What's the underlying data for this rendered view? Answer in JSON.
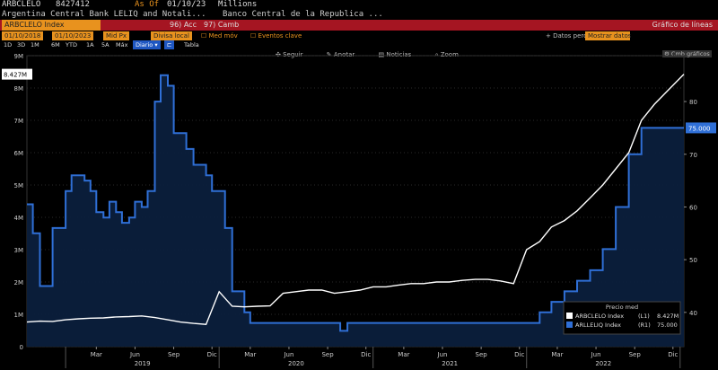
{
  "header": {
    "ticker": "ARBCLELO",
    "last_value": "8427412",
    "as_of_label": "As Of",
    "as_of_date": "01/10/23",
    "units": "Millions",
    "description_left": "Argentina Central Bank LELIQ and Notali...",
    "description_right": "Banco Central de la Republica ..."
  },
  "command_bar": {
    "security": "ARBCLELO Index",
    "action1": "96) Acc",
    "action2": "97) Camb",
    "view_title": "Gráfico de líneas"
  },
  "settings_bar": {
    "start_date": "01/10/2018",
    "end_date": "01/10/2023",
    "field": "Mid Px",
    "currency": "Divisa local",
    "option1": "Med móv",
    "option2": "Eventos clave",
    "data_label": "Datos perdi",
    "data_value": "Mostrar datos"
  },
  "range_bar": {
    "periods": [
      "1D",
      "3D",
      "1M",
      "6M",
      "YTD",
      "1A",
      "5A",
      "Máx"
    ],
    "frequency": "Diario",
    "table_label": "Tabla"
  },
  "chart_toolbar": {
    "items": [
      "Seguir",
      "Anotar",
      "Noticias",
      "Zoom"
    ],
    "right_button": "Cmb gráficos"
  },
  "colors": {
    "background": "#000000",
    "header_bar": "#a51522",
    "line_white": "#ffffff",
    "line_blue": "#2f6fd6",
    "area_fill": "#0b1f3c",
    "grid": "#2a2a2a",
    "accent_orange": "#e8921e"
  },
  "chart_data": {
    "type": "line",
    "x_ticks": [
      "Mar",
      "Jun",
      "Sep",
      "Dic",
      "Mar",
      "Jun",
      "Sep",
      "Dic",
      "Mar",
      "Jun",
      "Sep",
      "Dic",
      "Mar",
      "Jun",
      "Sep",
      "Dic"
    ],
    "x_years": [
      "2019",
      "2020",
      "2021",
      "2022"
    ],
    "y_left": {
      "ticks": [
        "0",
        "1M",
        "2M",
        "3M",
        "4M",
        "5M",
        "6M",
        "7M",
        "8M",
        "9M"
      ],
      "range": [
        0,
        9000000
      ]
    },
    "y_right": {
      "ticks": [
        "40",
        "50",
        "60",
        "70",
        "80"
      ],
      "range": [
        33.5,
        88.7
      ]
    },
    "last_value_label_left": "8.427M",
    "last_value_label_right": "75.000",
    "legend": {
      "title": "Precio med",
      "entries": [
        {
          "name": "ARBCLELO Index",
          "axis": "(L1)",
          "value": "8.427M"
        },
        {
          "name": "ARLLELIQ Index",
          "axis": "(R1)",
          "value": "75.000"
        }
      ]
    },
    "series": [
      {
        "name": "ARBCLELO Index",
        "axis": "left",
        "dates": [
          "2018-10-01",
          "2018-11-01",
          "2018-12-01",
          "2019-01-01",
          "2019-02-01",
          "2019-03-01",
          "2019-04-01",
          "2019-05-01",
          "2019-06-01",
          "2019-07-01",
          "2019-08-01",
          "2019-09-01",
          "2019-10-01",
          "2019-11-01",
          "2019-12-01",
          "2020-01-01",
          "2020-02-01",
          "2020-03-01",
          "2020-04-01",
          "2020-05-01",
          "2020-06-01",
          "2020-07-01",
          "2020-08-01",
          "2020-09-01",
          "2020-10-01",
          "2020-11-01",
          "2020-12-01",
          "2021-01-01",
          "2021-02-01",
          "2021-03-01",
          "2021-04-01",
          "2021-05-01",
          "2021-06-01",
          "2021-07-01",
          "2021-08-01",
          "2021-09-01",
          "2021-10-01",
          "2021-11-01",
          "2021-12-01",
          "2022-01-01",
          "2022-02-01",
          "2022-03-01",
          "2022-04-01",
          "2022-05-01",
          "2022-06-01",
          "2022-07-01",
          "2022-08-01",
          "2022-09-01",
          "2022-10-01",
          "2022-11-01",
          "2022-12-01",
          "2023-01-10"
        ],
        "values": [
          760000,
          790000,
          780000,
          830000,
          860000,
          880000,
          890000,
          920000,
          930000,
          950000,
          900000,
          830000,
          760000,
          720000,
          690000,
          1700000,
          1250000,
          1230000,
          1250000,
          1260000,
          1650000,
          1700000,
          1750000,
          1750000,
          1650000,
          1700000,
          1750000,
          1850000,
          1850000,
          1900000,
          1950000,
          1950000,
          2000000,
          2000000,
          2050000,
          2080000,
          2080000,
          2030000,
          1950000,
          3000000,
          3250000,
          3700000,
          3900000,
          4200000,
          4600000,
          5000000,
          5500000,
          6000000,
          7000000,
          7500000,
          7900000,
          8427412
        ]
      },
      {
        "name": "ARLLELIQ Index",
        "axis": "right",
        "dates": [
          "2018-10-01",
          "2018-10-15",
          "2018-11-01",
          "2018-12-01",
          "2019-01-01",
          "2019-01-15",
          "2019-02-01",
          "2019-02-15",
          "2019-03-01",
          "2019-03-15",
          "2019-04-01",
          "2019-04-15",
          "2019-05-01",
          "2019-05-15",
          "2019-06-01",
          "2019-06-15",
          "2019-07-01",
          "2019-07-15",
          "2019-08-01",
          "2019-08-15",
          "2019-09-01",
          "2019-09-15",
          "2019-10-01",
          "2019-10-15",
          "2019-11-01",
          "2019-12-01",
          "2019-12-15",
          "2020-01-01",
          "2020-01-15",
          "2020-02-01",
          "2020-03-01",
          "2020-03-15",
          "2020-04-01",
          "2020-05-01",
          "2020-06-01",
          "2020-07-01",
          "2020-08-01",
          "2020-09-01",
          "2020-10-01",
          "2020-10-15",
          "2020-11-01",
          "2020-12-01",
          "2021-06-01",
          "2021-12-01",
          "2022-01-01",
          "2022-02-01",
          "2022-03-01",
          "2022-04-01",
          "2022-05-01",
          "2022-06-01",
          "2022-07-01",
          "2022-08-01",
          "2022-09-01",
          "2022-10-01",
          "2022-12-01",
          "2023-01-10"
        ],
        "values": [
          60.5,
          55,
          45,
          56,
          63,
          66,
          66,
          65,
          63,
          59,
          58,
          61,
          59,
          57,
          58,
          61,
          60,
          63,
          80,
          85,
          83,
          74,
          74,
          71,
          68,
          66,
          63,
          63,
          56,
          44,
          40,
          38,
          38,
          38,
          38,
          38,
          38,
          38,
          38,
          36.5,
          38,
          38,
          38,
          38,
          38,
          40,
          42,
          44,
          46,
          48,
          52,
          60,
          70,
          75,
          75,
          75
        ]
      }
    ]
  }
}
